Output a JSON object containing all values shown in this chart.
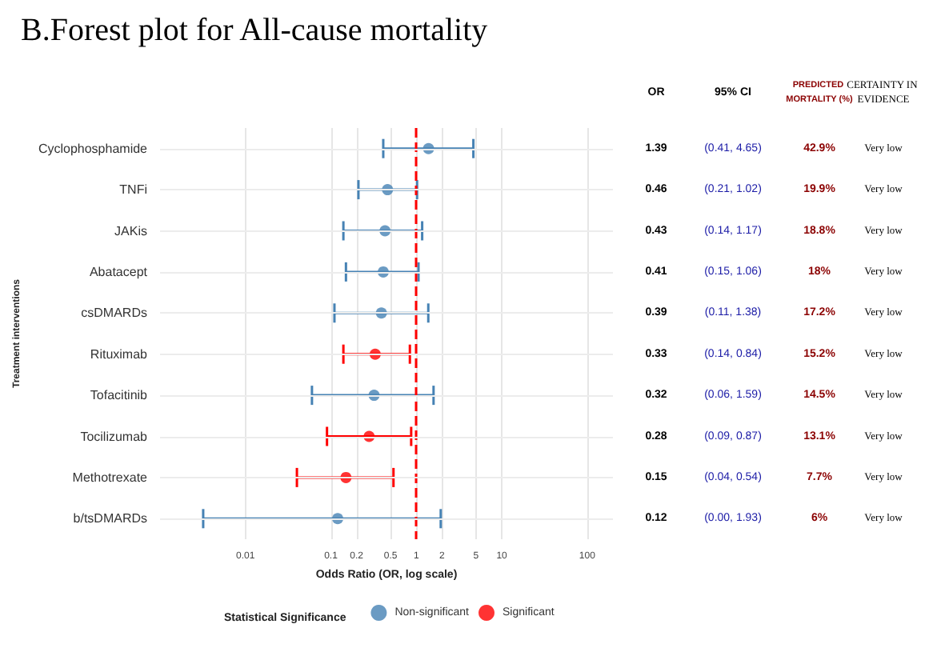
{
  "chart_data": {
    "type": "scatter",
    "orientation": "horizontal",
    "title": "B.Forest plot for All-cause mortality",
    "xlabel": "Odds Ratio (OR, log scale)",
    "ylabel": "Treatment interventions",
    "legend_title": "Statistical Significance",
    "categories": [
      "Cyclophosphamide",
      "TNFi",
      "JAKis",
      "Abatacept",
      "csDMARDs",
      "Rituximab",
      "Tofacitinib",
      "Tocilizumab",
      "Methotrexate",
      "b/tsDMARDs"
    ],
    "series": [
      {
        "name": "Non-significant",
        "color": "#4682b4",
        "values": [
          1.39,
          0.46,
          0.43,
          0.41,
          0.39,
          null,
          0.32,
          null,
          null,
          0.12
        ],
        "errors": [
          [
            0.41,
            4.65
          ],
          [
            0.21,
            1.02
          ],
          [
            0.14,
            1.17
          ],
          [
            0.15,
            1.06
          ],
          [
            0.11,
            1.38
          ],
          null,
          [
            0.06,
            1.59
          ],
          null,
          null,
          [
            0.0032,
            1.93
          ]
        ]
      },
      {
        "name": "Significant",
        "color": "#ff0000",
        "values": [
          null,
          null,
          null,
          null,
          null,
          0.33,
          null,
          0.28,
          0.15,
          null
        ],
        "errors": [
          null,
          null,
          null,
          null,
          null,
          [
            0.14,
            0.84
          ],
          null,
          [
            0.09,
            0.87
          ],
          [
            0.04,
            0.54
          ],
          null
        ]
      }
    ],
    "log": "x",
    "xlim": [
      0.001,
      200
    ],
    "xticks": [
      0.01,
      0.1,
      0.2,
      0.5,
      1,
      2,
      5,
      10,
      100
    ],
    "grid": true,
    "legend": "bottom",
    "marker": "circle",
    "ref_lines": [
      {
        "axis": "x",
        "value": 1,
        "color": "#ff0000",
        "line_style": "dashed"
      }
    ],
    "annotations": [
      "OR",
      "95% CI",
      "PREDICTED MORTALITY (%)",
      "CERTAINTY IN EVIDENCE",
      "1.39",
      "(0.41, 4.65)",
      "42.9%",
      "Very low",
      "0.46",
      "(0.21, 1.02)",
      "19.9%",
      "Very low",
      "0.43",
      "(0.14, 1.17)",
      "18.8%",
      "Very low",
      "0.41",
      "(0.15, 1.06)",
      "18%",
      "Very low",
      "0.39",
      "(0.11, 1.38)",
      "17.2%",
      "Very low",
      "0.33",
      "(0.14, 0.84)",
      "15.2%",
      "Very low",
      "0.32",
      "(0.06, 1.59)",
      "14.5%",
      "Very low",
      "0.28",
      "(0.09, 0.87)",
      "13.1%",
      "Very low",
      "0.15",
      "(0.04, 0.54)",
      "7.7%",
      "Very low",
      "0.12",
      "(0.00, 1.93)",
      "6%",
      "Very low"
    ]
  }
}
